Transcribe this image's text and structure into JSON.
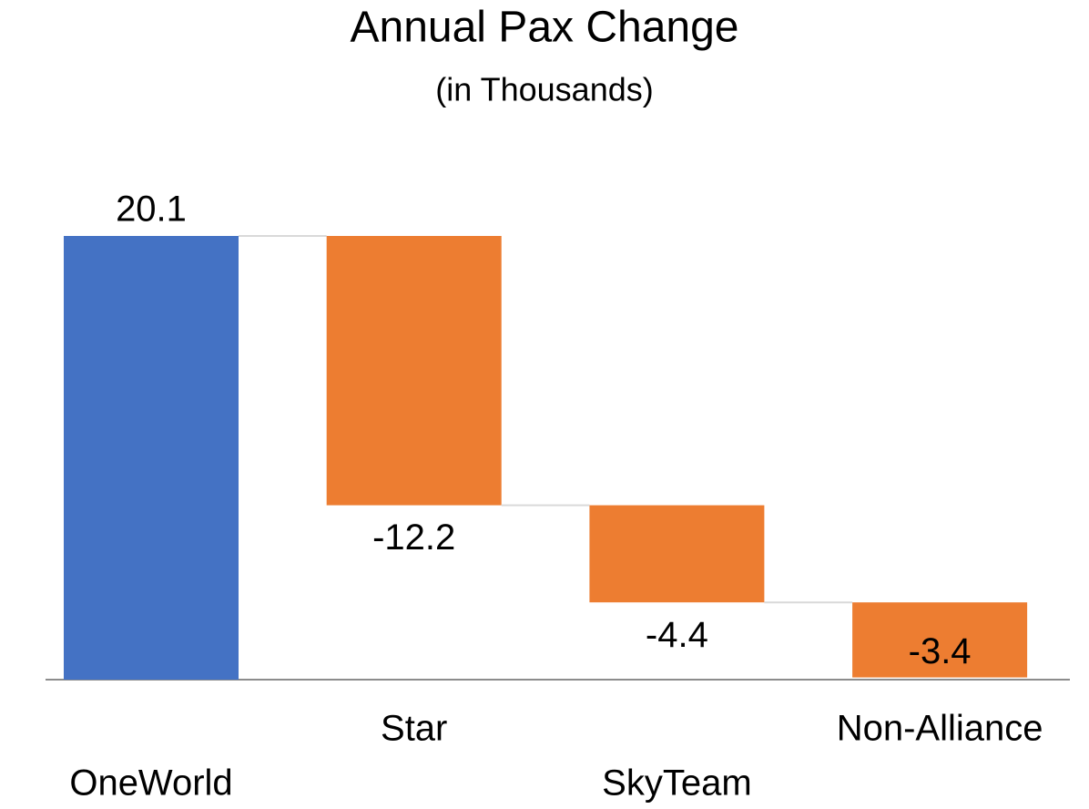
{
  "chart_data": {
    "type": "waterfall",
    "title": "Annual Pax Change",
    "subtitle": "(in Thousands)",
    "categories": [
      "OneWorld",
      "Star",
      "SkyTeam",
      "Non-Alliance"
    ],
    "values": [
      20.1,
      -12.2,
      -4.4,
      -3.4
    ],
    "increase_color": "#4472c4",
    "decrease_color": "#ed7d31"
  }
}
